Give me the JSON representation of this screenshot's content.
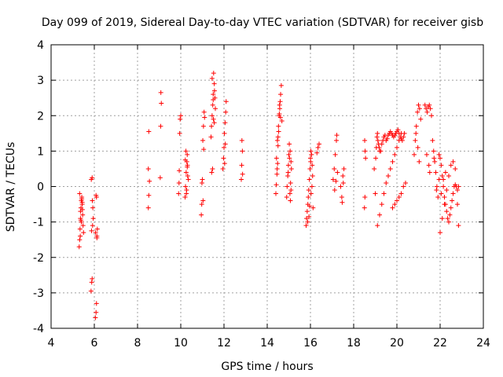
{
  "chart_data": {
    "type": "scatter",
    "title": "Day 099 of 2019, Sidereal Day-to-day VTEC variation (SDTVAR) for receiver gisb",
    "xlabel": "GPS time / hours",
    "ylabel": "SDTVAR / TECUs",
    "xlim": [
      4,
      24
    ],
    "ylim": [
      -4,
      4
    ],
    "xticks": [
      4,
      6,
      8,
      10,
      12,
      14,
      16,
      18,
      20,
      22,
      24
    ],
    "yticks": [
      -4,
      -3,
      -2,
      -1,
      0,
      1,
      2,
      3,
      4
    ],
    "xtick_labels": [
      "4",
      "6",
      "8",
      "10",
      "12",
      "14",
      "16",
      "18",
      "20",
      "22",
      "24"
    ],
    "ytick_labels": [
      "-4",
      "-3",
      "-2",
      "-1",
      "0",
      "1",
      "2",
      "3",
      "4"
    ],
    "grid": true,
    "marker": "+",
    "color": "#ff0000",
    "series": [
      {
        "name": "SDTVAR",
        "x": [
          5.3,
          5.32,
          5.34,
          5.36,
          5.38,
          5.4,
          5.42,
          5.44,
          5.46,
          5.48,
          5.5,
          5.32,
          5.36,
          5.4,
          5.44,
          5.35,
          5.38,
          5.42,
          5.45,
          5.85,
          5.88,
          5.9,
          5.92,
          5.95,
          5.87,
          5.91,
          5.86,
          5.9,
          5.93,
          6.05,
          6.08,
          6.1,
          6.12,
          6.14,
          6.06,
          6.1,
          6.08,
          6.12,
          8.5,
          8.52,
          8.5,
          8.55,
          8.52,
          9.05,
          9.07,
          9.1,
          9.08,
          9.9,
          9.92,
          9.95,
          9.97,
          10.0,
          9.93,
          10.2,
          10.22,
          10.25,
          10.28,
          10.3,
          10.32,
          10.35,
          10.24,
          10.27,
          10.3,
          10.21,
          10.26,
          10.31,
          10.95,
          10.97,
          11.0,
          11.02,
          11.05,
          11.08,
          11.1,
          10.98,
          11.03,
          11.06,
          11.4,
          11.42,
          11.45,
          11.48,
          11.5,
          11.52,
          11.55,
          11.58,
          11.6,
          11.43,
          11.47,
          11.51,
          11.56,
          11.45,
          11.5,
          11.55,
          11.95,
          11.98,
          12.0,
          12.02,
          12.05,
          12.08,
          12.1,
          12.03,
          12.06,
          12.8,
          12.82,
          12.85,
          12.83,
          12.86,
          14.4,
          14.42,
          14.45,
          14.48,
          14.5,
          14.52,
          14.55,
          14.58,
          14.6,
          14.62,
          14.65,
          14.68,
          14.43,
          14.47,
          14.53,
          14.57,
          14.61,
          14.46,
          14.5,
          14.56,
          14.9,
          14.92,
          14.95,
          14.98,
          15.0,
          15.02,
          15.05,
          15.08,
          15.1,
          14.97,
          15.03,
          15.06,
          15.07,
          15.1,
          15.12,
          15.8,
          15.82,
          15.85,
          15.88,
          15.9,
          15.92,
          15.95,
          15.98,
          16.0,
          16.02,
          16.05,
          16.08,
          16.1,
          16.12,
          15.87,
          15.93,
          16.03,
          16.07,
          15.96,
          16.01,
          16.3,
          16.35,
          16.4,
          17.05,
          17.1,
          17.15,
          17.2,
          17.22,
          17.25,
          17.12,
          17.18,
          17.4,
          17.45,
          17.5,
          17.55,
          17.47,
          17.52,
          18.5,
          18.52,
          18.55,
          18.53,
          18.51,
          18.95,
          19.0,
          19.02,
          19.05,
          19.08,
          19.1,
          19.12,
          19.15,
          19.18,
          19.2,
          19.25,
          19.3,
          19.35,
          19.4,
          19.45,
          19.5,
          19.55,
          19.6,
          19.65,
          19.7,
          19.75,
          19.8,
          19.85,
          19.9,
          19.95,
          20.0,
          20.05,
          20.1,
          20.15,
          20.2,
          20.25,
          20.3,
          20.35,
          19.1,
          19.2,
          19.3,
          19.4,
          19.5,
          19.6,
          19.7,
          19.8,
          19.9,
          20.0,
          20.1,
          20.2,
          19.8,
          19.9,
          20.0,
          20.1,
          20.2,
          20.3,
          20.4,
          20.8,
          20.85,
          20.9,
          20.95,
          21.0,
          21.05,
          21.1,
          20.88,
          20.97,
          21.03,
          21.3,
          21.35,
          21.4,
          21.45,
          21.5,
          21.55,
          21.6,
          21.38,
          21.48,
          21.52,
          21.65,
          21.7,
          21.75,
          21.8,
          21.85,
          21.9,
          21.95,
          21.72,
          21.83,
          21.95,
          22.0,
          22.05,
          22.1,
          22.15,
          22.2,
          22.25,
          22.3,
          22.35,
          22.4,
          22.45,
          22.5,
          22.55,
          22.6,
          22.65,
          22.7,
          22.75,
          22.8,
          22.85,
          22.0,
          22.1,
          22.2,
          22.3,
          22.4,
          22.5,
          22.6,
          22.7,
          22.8,
          22.85,
          22.05,
          22.15,
          22.25
        ],
        "y": [
          -1.7,
          -1.5,
          -1.2,
          -0.9,
          -0.6,
          -0.4,
          -0.3,
          -0.5,
          -0.8,
          -1.1,
          -1.3,
          -0.2,
          -0.7,
          -1.0,
          -0.45,
          -1.4,
          -0.95,
          -0.35,
          -0.65,
          -2.95,
          -2.7,
          -2.6,
          -1.1,
          -0.9,
          -1.25,
          -0.4,
          0.2,
          0.25,
          -0.6,
          -3.7,
          -3.55,
          -3.3,
          -1.4,
          -1.2,
          -1.3,
          -0.3,
          -0.25,
          -1.45,
          -0.6,
          -0.25,
          0.5,
          0.15,
          1.55,
          0.25,
          1.7,
          2.35,
          2.65,
          -0.2,
          0.1,
          1.5,
          1.9,
          2.0,
          0.45,
          -0.3,
          0.0,
          0.4,
          0.7,
          0.9,
          0.3,
          0.2,
          1.0,
          -0.1,
          0.55,
          0.75,
          -0.2,
          0.6,
          -0.8,
          -0.5,
          0.2,
          1.3,
          1.7,
          2.1,
          1.95,
          0.1,
          -0.4,
          1.05,
          1.4,
          1.7,
          2.0,
          2.3,
          2.6,
          3.2,
          2.9,
          2.5,
          2.2,
          0.4,
          0.5,
          1.9,
          2.7,
          3.05,
          2.45,
          1.8,
          0.5,
          0.8,
          1.1,
          1.5,
          1.8,
          2.1,
          2.4,
          0.65,
          1.2,
          0.2,
          0.6,
          1.0,
          1.3,
          0.35,
          -0.2,
          0.05,
          0.35,
          0.65,
          1.4,
          1.7,
          2.0,
          2.2,
          2.4,
          2.6,
          2.85,
          1.85,
          0.8,
          1.3,
          1.55,
          2.3,
          1.95,
          0.5,
          1.15,
          2.05,
          -0.3,
          0.0,
          0.3,
          0.6,
          0.9,
          1.2,
          -0.2,
          0.1,
          0.7,
          0.4,
          0.8,
          1.0,
          -0.4,
          -0.1,
          0.5,
          -1.1,
          -0.9,
          -0.7,
          -0.5,
          -0.3,
          -0.1,
          0.2,
          0.5,
          0.8,
          1.0,
          0.9,
          0.6,
          0.3,
          -0.6,
          -1.0,
          -0.85,
          -0.2,
          0.0,
          -0.55,
          0.7,
          0.95,
          1.1,
          1.2,
          0.2,
          0.5,
          0.9,
          1.3,
          1.45,
          0.4,
          -0.1,
          0.15,
          0.0,
          -0.3,
          0.3,
          0.5,
          -0.45,
          0.1,
          -0.6,
          -0.3,
          0.8,
          1.0,
          1.3,
          0.5,
          -0.2,
          0.8,
          1.1,
          1.4,
          1.5,
          1.3,
          1.2,
          1.1,
          1.0,
          1.0,
          1.2,
          1.3,
          1.4,
          1.45,
          1.3,
          1.35,
          1.45,
          1.5,
          1.55,
          1.5,
          1.45,
          1.4,
          1.45,
          1.5,
          1.55,
          1.6,
          1.5,
          1.4,
          1.35,
          1.3,
          1.4,
          1.5,
          -1.1,
          -0.8,
          -0.5,
          -0.2,
          0.1,
          0.3,
          0.5,
          0.7,
          0.9,
          1.1,
          1.3,
          1.5,
          -0.6,
          -0.5,
          -0.4,
          -0.3,
          -0.2,
          0.0,
          0.1,
          0.9,
          1.3,
          1.7,
          2.1,
          2.3,
          2.2,
          1.9,
          1.5,
          1.1,
          0.7,
          2.3,
          2.2,
          2.1,
          2.25,
          2.3,
          2.2,
          2.0,
          0.9,
          0.6,
          0.4,
          1.3,
          1.0,
          0.7,
          0.4,
          0.0,
          -0.3,
          0.2,
          0.8,
          -0.1,
          0.9,
          0.8,
          0.6,
          0.3,
          0.0,
          -0.3,
          -0.5,
          -0.7,
          -0.9,
          -1.0,
          -0.8,
          -0.6,
          -0.4,
          -0.2,
          0.0,
          0.05,
          0.0,
          -0.1,
          0.0,
          -1.3,
          -0.9,
          -0.5,
          -0.1,
          0.3,
          0.6,
          0.7,
          0.5,
          -0.5,
          -1.1,
          -0.2,
          0.2,
          0.4
        ]
      }
    ]
  }
}
